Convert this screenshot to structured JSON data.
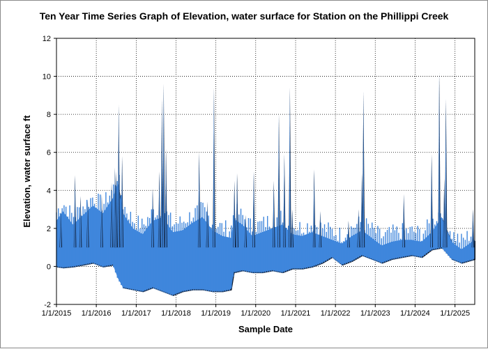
{
  "chart_data": {
    "type": "line",
    "title": "Ten Year Time Series Graph of Elevation, water surface for Station  on the Phillippi Creek",
    "xlabel": "Sample Date",
    "ylabel": "Elevation, water surface ft",
    "ylim": [
      -2,
      12
    ],
    "xlim": [
      "2015-01-01",
      "2025-07-01"
    ],
    "y_ticks": [
      -2,
      0,
      2,
      4,
      6,
      8,
      10,
      12
    ],
    "x_ticks": [
      "1/1/2015",
      "1/1/2016",
      "1/1/2017",
      "1/1/2018",
      "1/1/2019",
      "1/1/2020",
      "1/1/2021",
      "1/1/2022",
      "1/1/2023",
      "1/1/2024",
      "1/1/2025"
    ],
    "grid": true,
    "series": [
      {
        "color": "#3f86dc",
        "band": [
          {
            "date": "2015-01-01",
            "low": 0.0,
            "high": 2.4
          },
          {
            "date": "2015-03-01",
            "low": -0.05,
            "high": 2.9
          },
          {
            "date": "2015-06-01",
            "low": 0.0,
            "high": 2.2
          },
          {
            "date": "2015-09-01",
            "low": 0.1,
            "high": 2.7
          },
          {
            "date": "2015-12-01",
            "low": 0.2,
            "high": 3.2
          },
          {
            "date": "2016-03-01",
            "low": 0.0,
            "high": 2.8
          },
          {
            "date": "2016-06-01",
            "low": 0.1,
            "high": 3.6
          },
          {
            "date": "2016-07-15",
            "low": -0.6,
            "high": 4.4
          },
          {
            "date": "2016-09-01",
            "low": -1.1,
            "high": 2.8
          },
          {
            "date": "2016-12-01",
            "low": -1.2,
            "high": 2.0
          },
          {
            "date": "2017-03-01",
            "low": -1.3,
            "high": 1.7
          },
          {
            "date": "2017-06-01",
            "low": -1.1,
            "high": 2.4
          },
          {
            "date": "2017-09-01",
            "low": -1.3,
            "high": 2.6
          },
          {
            "date": "2017-12-01",
            "low": -1.5,
            "high": 1.8
          },
          {
            "date": "2018-03-01",
            "low": -1.3,
            "high": 1.9
          },
          {
            "date": "2018-06-01",
            "low": -1.2,
            "high": 2.3
          },
          {
            "date": "2018-09-01",
            "low": -1.2,
            "high": 2.6
          },
          {
            "date": "2018-12-01",
            "low": -1.3,
            "high": 1.9
          },
          {
            "date": "2019-03-01",
            "low": -1.3,
            "high": 1.6
          },
          {
            "date": "2019-05-20",
            "low": -1.2,
            "high": 1.5
          },
          {
            "date": "2019-06-15",
            "low": -0.3,
            "high": 2.5
          },
          {
            "date": "2019-09-01",
            "low": -0.2,
            "high": 2.2
          },
          {
            "date": "2019-12-01",
            "low": -0.3,
            "high": 1.6
          },
          {
            "date": "2020-03-01",
            "low": -0.3,
            "high": 1.8
          },
          {
            "date": "2020-06-01",
            "low": -0.2,
            "high": 2.0
          },
          {
            "date": "2020-09-01",
            "low": -0.3,
            "high": 2.2
          },
          {
            "date": "2020-12-01",
            "low": -0.1,
            "high": 1.7
          },
          {
            "date": "2021-03-01",
            "low": -0.1,
            "high": 1.6
          },
          {
            "date": "2021-06-01",
            "low": 0.0,
            "high": 1.8
          },
          {
            "date": "2021-09-01",
            "low": 0.2,
            "high": 1.6
          },
          {
            "date": "2021-12-01",
            "low": 0.5,
            "high": 1.4
          },
          {
            "date": "2022-03-01",
            "low": 0.1,
            "high": 1.2
          },
          {
            "date": "2022-06-01",
            "low": 0.3,
            "high": 1.6
          },
          {
            "date": "2022-09-01",
            "low": 0.6,
            "high": 1.9
          },
          {
            "date": "2022-12-01",
            "low": 0.4,
            "high": 1.5
          },
          {
            "date": "2023-03-01",
            "low": 0.2,
            "high": 1.1
          },
          {
            "date": "2023-06-01",
            "low": 0.4,
            "high": 1.3
          },
          {
            "date": "2023-09-01",
            "low": 0.5,
            "high": 1.4
          },
          {
            "date": "2023-12-01",
            "low": 0.6,
            "high": 1.4
          },
          {
            "date": "2024-03-01",
            "low": 0.5,
            "high": 1.3
          },
          {
            "date": "2024-06-01",
            "low": 0.9,
            "high": 1.8
          },
          {
            "date": "2024-09-01",
            "low": 1.0,
            "high": 2.6
          },
          {
            "date": "2024-12-01",
            "low": 0.4,
            "high": 1.3
          },
          {
            "date": "2025-03-01",
            "low": 0.2,
            "high": 0.9
          },
          {
            "date": "2025-07-01",
            "low": 0.4,
            "high": 1.4
          }
        ],
        "spikes": [
          {
            "date": "2015-02-10",
            "high": 2.9
          },
          {
            "date": "2015-06-20",
            "high": 4.8
          },
          {
            "date": "2015-08-10",
            "high": 3.7
          },
          {
            "date": "2015-10-15",
            "high": 3.5
          },
          {
            "date": "2016-02-20",
            "high": 3.8
          },
          {
            "date": "2016-05-20",
            "high": 4.4
          },
          {
            "date": "2016-06-20",
            "high": 5.2
          },
          {
            "date": "2016-07-01",
            "high": 5.0
          },
          {
            "date": "2016-07-25",
            "high": 8.5
          },
          {
            "date": "2016-08-25",
            "high": 5.8
          },
          {
            "date": "2017-06-01",
            "high": 4.1
          },
          {
            "date": "2017-08-01",
            "high": 5.0
          },
          {
            "date": "2017-08-25",
            "high": 8.8
          },
          {
            "date": "2017-09-10",
            "high": 9.6
          },
          {
            "date": "2017-10-01",
            "high": 6.2
          },
          {
            "date": "2018-08-01",
            "high": 6.0
          },
          {
            "date": "2018-10-15",
            "high": 3.4
          },
          {
            "date": "2018-12-15",
            "high": 9.4
          },
          {
            "date": "2019-06-20",
            "high": 4.5
          },
          {
            "date": "2019-07-15",
            "high": 4.9
          },
          {
            "date": "2019-10-01",
            "high": 2.7
          },
          {
            "date": "2019-12-15",
            "high": 5.0
          },
          {
            "date": "2020-06-15",
            "high": 4.5
          },
          {
            "date": "2020-08-01",
            "high": 8.0
          },
          {
            "date": "2020-09-20",
            "high": 5.9
          },
          {
            "date": "2020-11-10",
            "high": 9.4
          },
          {
            "date": "2020-12-01",
            "high": 3.0
          },
          {
            "date": "2021-06-20",
            "high": 5.1
          },
          {
            "date": "2021-08-15",
            "high": 2.9
          },
          {
            "date": "2022-05-01",
            "high": 2.4
          },
          {
            "date": "2022-08-01",
            "high": 3.0
          },
          {
            "date": "2022-09-01",
            "high": 4.9
          },
          {
            "date": "2022-09-15",
            "high": 9.2
          },
          {
            "date": "2023-09-20",
            "high": 3.8
          },
          {
            "date": "2024-06-01",
            "high": 5.9
          },
          {
            "date": "2024-08-10",
            "high": 10.2
          },
          {
            "date": "2024-09-25",
            "high": 4.6
          },
          {
            "date": "2024-10-10",
            "high": 8.8
          },
          {
            "date": "2025-06-15",
            "high": 3.0
          }
        ]
      }
    ]
  }
}
